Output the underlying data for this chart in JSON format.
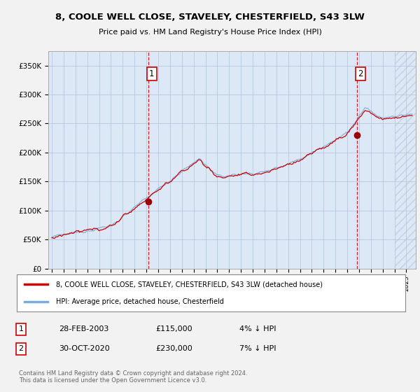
{
  "title1": "8, COOLE WELL CLOSE, STAVELEY, CHESTERFIELD, S43 3LW",
  "title2": "Price paid vs. HM Land Registry's House Price Index (HPI)",
  "legend_line1": "8, COOLE WELL CLOSE, STAVELEY, CHESTERFIELD, S43 3LW (detached house)",
  "legend_line2": "HPI: Average price, detached house, Chesterfield",
  "annotation1_date": "28-FEB-2003",
  "annotation1_price": "£115,000",
  "annotation1_hpi": "4% ↓ HPI",
  "annotation2_date": "30-OCT-2020",
  "annotation2_price": "£230,000",
  "annotation2_hpi": "7% ↓ HPI",
  "copyright": "Contains HM Land Registry data © Crown copyright and database right 2024.\nThis data is licensed under the Open Government Licence v3.0.",
  "sale1_year": 2003.15,
  "sale1_price": 115000,
  "sale2_year": 2020.83,
  "sale2_price": 230000,
  "hpi_color": "#7aace0",
  "price_color": "#cc0000",
  "sale_dot_color": "#990000",
  "chart_bg_color": "#dce8f5",
  "fig_bg_color": "#f2f2f2",
  "plot_bg_color": "#dce8f5",
  "yticks": [
    0,
    50000,
    100000,
    150000,
    200000,
    250000,
    300000,
    350000
  ],
  "ytick_labels": [
    "£0",
    "£50K",
    "£100K",
    "£150K",
    "£200K",
    "£250K",
    "£300K",
    "£350K"
  ],
  "ylim": [
    0,
    375000
  ],
  "xlim_start": 1994.7,
  "xlim_end": 2025.8,
  "hpi_noise_scale": 2500,
  "prop_noise_scale": 3500
}
